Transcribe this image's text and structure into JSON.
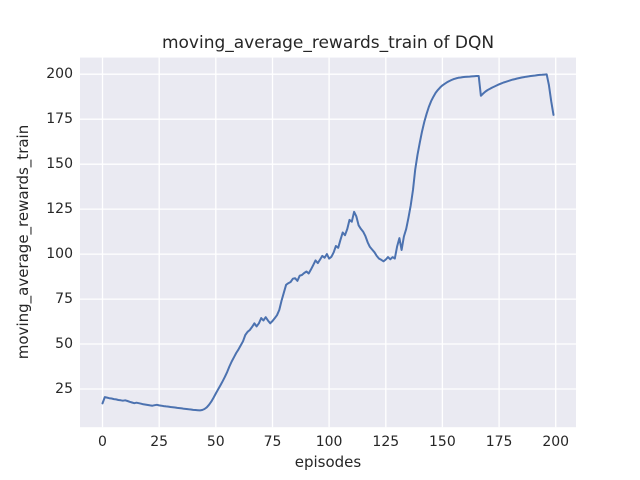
{
  "chart_data": {
    "type": "line",
    "title": "moving_average_rewards_train of DQN",
    "xlabel": "episodes",
    "ylabel": "moving_average_rewards_train",
    "x_ticks": [
      0,
      25,
      50,
      75,
      100,
      125,
      150,
      175,
      200
    ],
    "y_ticks": [
      25,
      50,
      75,
      100,
      125,
      150,
      175,
      200
    ],
    "xlim": [
      -9.95,
      208.95
    ],
    "ylim": [
      3.76,
      209.24
    ],
    "grid": true,
    "legend": null,
    "x_start": 0,
    "x_step": 1,
    "colors": {
      "line": "#4c72b0",
      "axes_bg": "#eaeaf2",
      "grid": "#ffffff",
      "text": "#262626"
    },
    "series": [
      {
        "name": "moving_average_rewards_train",
        "values": [
          17.0,
          20.5,
          20.2,
          19.9,
          19.7,
          19.4,
          19.2,
          18.9,
          18.7,
          18.5,
          18.7,
          18.3,
          17.9,
          17.5,
          17.1,
          17.4,
          17.1,
          16.8,
          16.5,
          16.3,
          16.1,
          15.9,
          15.7,
          16.0,
          16.2,
          15.9,
          15.7,
          15.5,
          15.3,
          15.2,
          15.0,
          14.9,
          14.7,
          14.5,
          14.4,
          14.2,
          14.0,
          13.9,
          13.7,
          13.6,
          13.4,
          13.3,
          13.2,
          13.1,
          13.3,
          13.9,
          14.8,
          16.2,
          18.0,
          20.2,
          22.5,
          24.8,
          27.0,
          29.3,
          31.8,
          34.5,
          37.5,
          40.3,
          42.7,
          45.0,
          47.0,
          49.3,
          51.5,
          55.0,
          56.8,
          57.8,
          59.5,
          61.5,
          59.8,
          61.5,
          64.4,
          63.1,
          64.9,
          63.0,
          61.5,
          62.8,
          64.4,
          66.0,
          69.0,
          74.0,
          78.5,
          82.9,
          83.8,
          84.5,
          86.3,
          86.6,
          85.1,
          88.0,
          88.4,
          89.5,
          90.3,
          89.2,
          91.5,
          94.0,
          96.5,
          95.0,
          97.0,
          99.0,
          98.0,
          100.0,
          97.5,
          98.5,
          101.0,
          104.5,
          103.5,
          108.0,
          112.0,
          110.5,
          114.0,
          119.0,
          118.0,
          123.5,
          121.0,
          116.0,
          114.0,
          112.5,
          110.0,
          106.5,
          104.0,
          102.5,
          101.0,
          99.0,
          97.5,
          96.8,
          96.0,
          97.0,
          98.3,
          97.1,
          98.3,
          97.5,
          104.2,
          108.9,
          102.3,
          109.8,
          114.0,
          120.0,
          127.0,
          135.7,
          147.0,
          155.2,
          162.0,
          168.1,
          173.5,
          178.0,
          181.8,
          185.0,
          187.5,
          189.6,
          191.3,
          192.7,
          193.8,
          194.7,
          195.5,
          196.2,
          196.8,
          197.3,
          197.7,
          198.0,
          198.2,
          198.4,
          198.5,
          198.6,
          198.7,
          198.8,
          198.9,
          199.0,
          199.0,
          188.0,
          189.3,
          190.4,
          191.2,
          191.9,
          192.6,
          193.2,
          193.8,
          194.4,
          194.9,
          195.4,
          195.8,
          196.2,
          196.6,
          197.0,
          197.3,
          197.6,
          197.9,
          198.2,
          198.4,
          198.6,
          198.8,
          199.0,
          199.2,
          199.3,
          199.5,
          199.6,
          199.7,
          199.8,
          199.9,
          194.0,
          185.0,
          177.4
        ]
      }
    ]
  }
}
